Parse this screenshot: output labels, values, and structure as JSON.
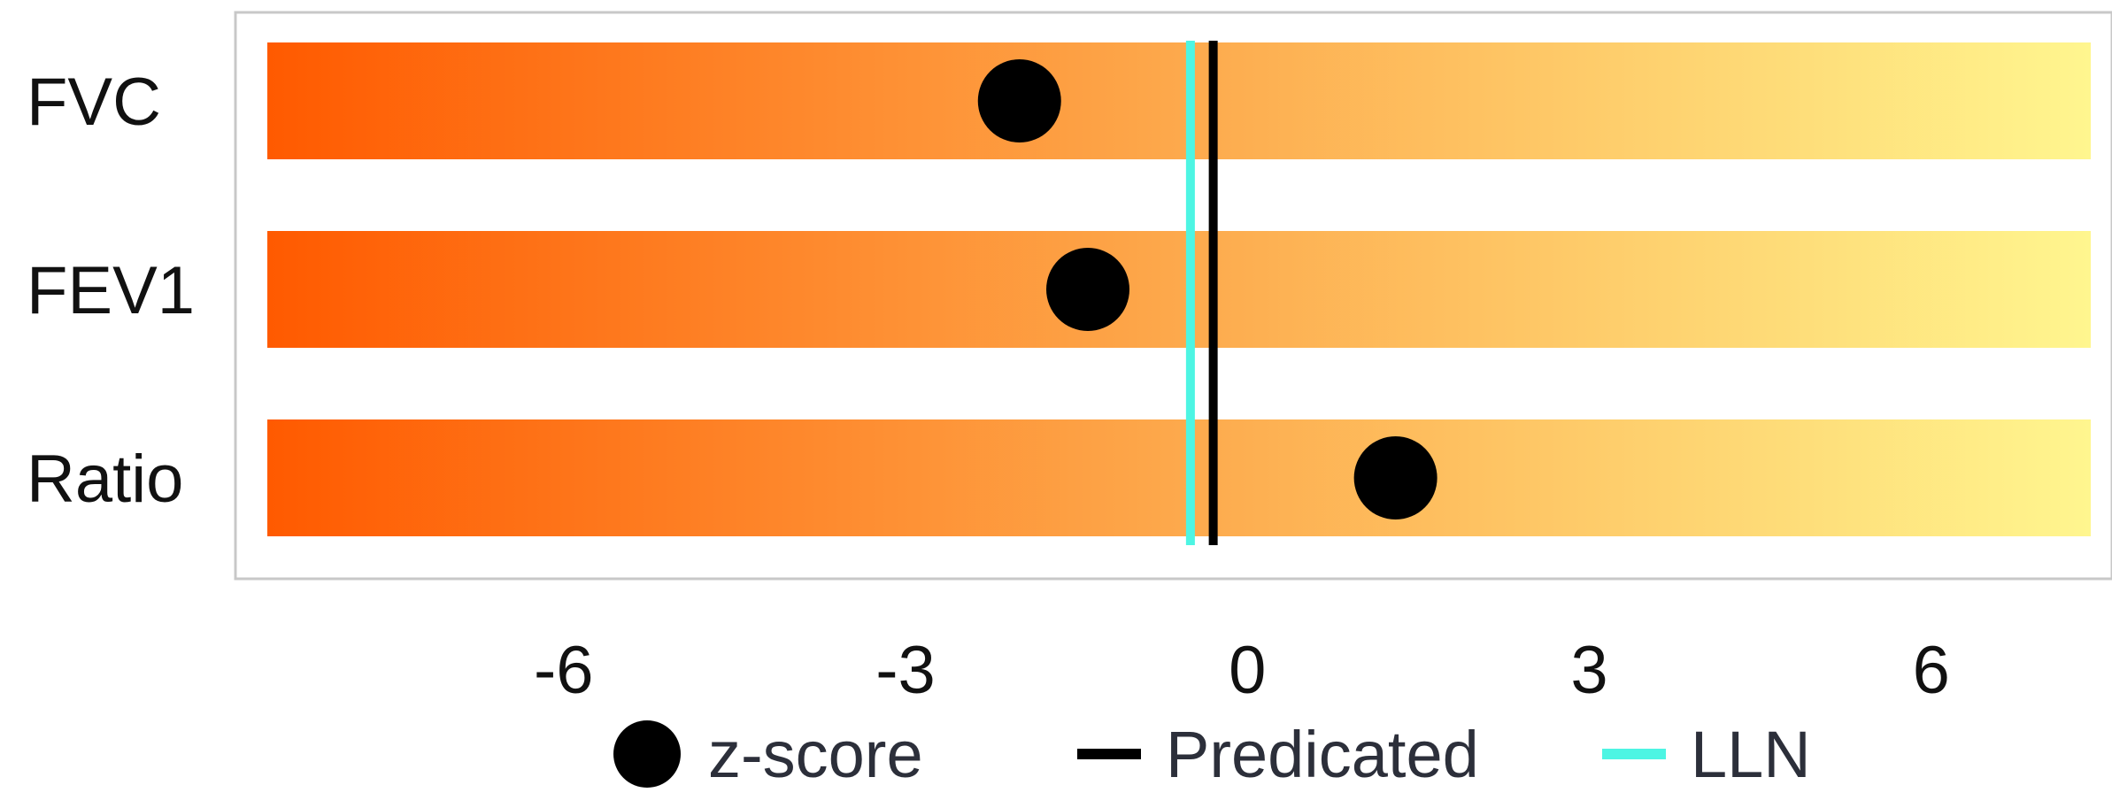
{
  "chart_data": {
    "type": "scatter",
    "title": "",
    "xlabel": "",
    "ylabel": "",
    "categories": [
      "FVC",
      "FEV1",
      "Ratio"
    ],
    "xlim": [
      -8.6,
      7.4
    ],
    "xticks": [
      -6,
      -3,
      0,
      3,
      6
    ],
    "grid": false,
    "legend_position": "bottom",
    "bar_gradient": [
      "#ff5a00",
      "#fda94c",
      "#fff68f"
    ],
    "series": [
      {
        "name": "z-score",
        "kind": "point",
        "values": [
          -2.0,
          -1.4,
          1.3
        ],
        "color": "#000000"
      },
      {
        "name": "Predicated",
        "kind": "vline",
        "value": -0.3,
        "color": "#000000"
      },
      {
        "name": "LLN",
        "kind": "vline",
        "value": -0.5,
        "color": "#4df5e3"
      }
    ]
  }
}
